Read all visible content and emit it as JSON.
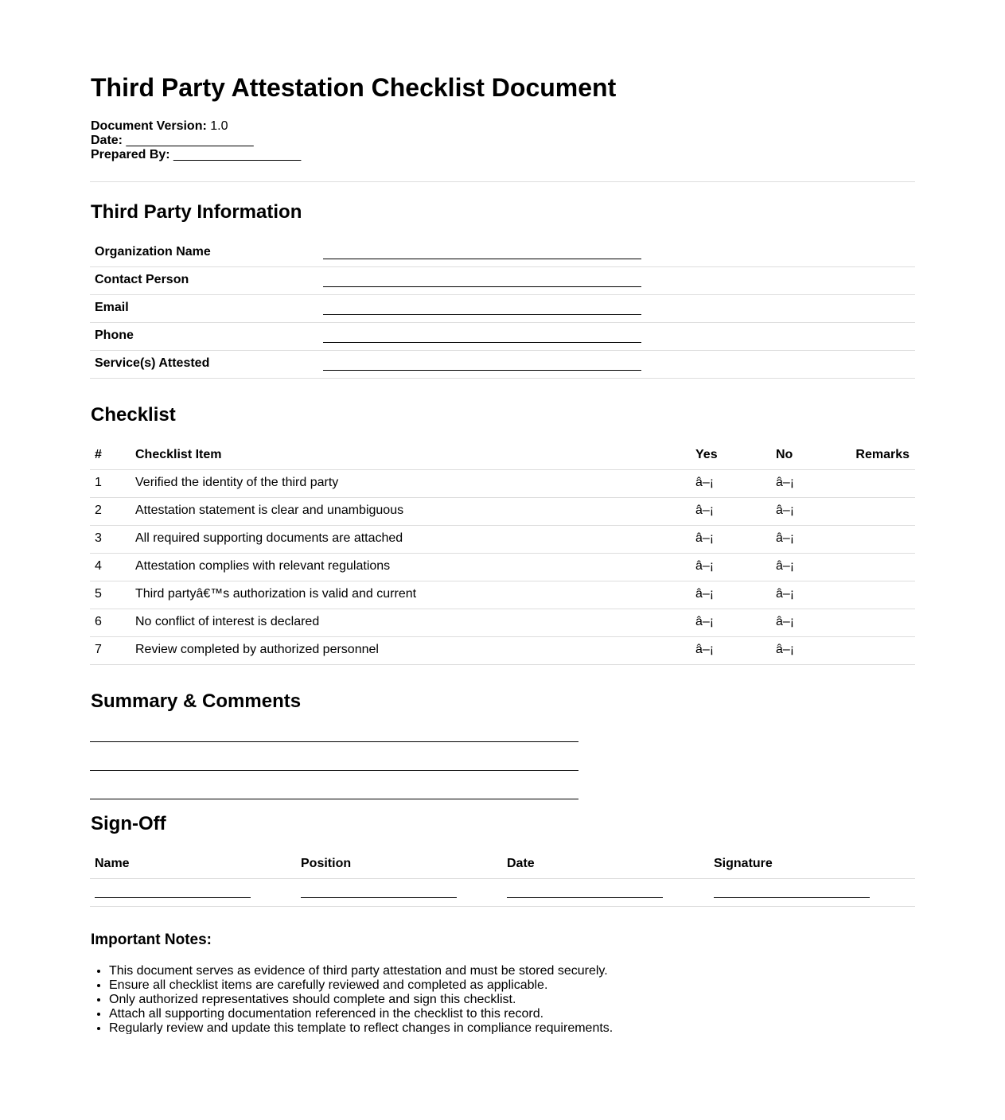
{
  "title": "Third Party Attestation Checklist Document",
  "meta": {
    "version_label": "Document Version:",
    "version_value": "1.0",
    "date_label": "Date:",
    "date_blank": "__________________",
    "prepared_label": "Prepared By:",
    "prepared_blank": "__________________"
  },
  "info": {
    "heading": "Third Party Information",
    "fields": [
      "Organization Name",
      "Contact Person",
      "Email",
      "Phone",
      "Service(s) Attested"
    ]
  },
  "checklist": {
    "heading": "Checklist",
    "columns": [
      "#",
      "Checklist Item",
      "Yes",
      "No",
      "Remarks"
    ],
    "rows": [
      {
        "num": "1",
        "item": "Verified the identity of the third party",
        "yes": "â–¡",
        "no": "â–¡",
        "remarks": ""
      },
      {
        "num": "2",
        "item": "Attestation statement is clear and unambiguous",
        "yes": "â–¡",
        "no": "â–¡",
        "remarks": ""
      },
      {
        "num": "3",
        "item": "All required supporting documents are attached",
        "yes": "â–¡",
        "no": "â–¡",
        "remarks": ""
      },
      {
        "num": "4",
        "item": "Attestation complies with relevant regulations",
        "yes": "â–¡",
        "no": "â–¡",
        "remarks": ""
      },
      {
        "num": "5",
        "item": "Third partyâ€™s authorization is valid and current",
        "yes": "â–¡",
        "no": "â–¡",
        "remarks": ""
      },
      {
        "num": "6",
        "item": "No conflict of interest is declared",
        "yes": "â–¡",
        "no": "â–¡",
        "remarks": ""
      },
      {
        "num": "7",
        "item": "Review completed by authorized personnel",
        "yes": "â–¡",
        "no": "â–¡",
        "remarks": ""
      }
    ]
  },
  "summary": {
    "heading": "Summary & Comments"
  },
  "signoff": {
    "heading": "Sign-Off",
    "columns": [
      "Name",
      "Position",
      "Date",
      "Signature"
    ]
  },
  "notes": {
    "heading": "Important Notes:",
    "items": [
      "This document serves as evidence of third party attestation and must be stored securely.",
      "Ensure all checklist items are carefully reviewed and completed as applicable.",
      "Only authorized representatives should complete and sign this checklist.",
      "Attach all supporting documentation referenced in the checklist to this record.",
      "Regularly review and update this template to reflect changes in compliance requirements."
    ]
  }
}
